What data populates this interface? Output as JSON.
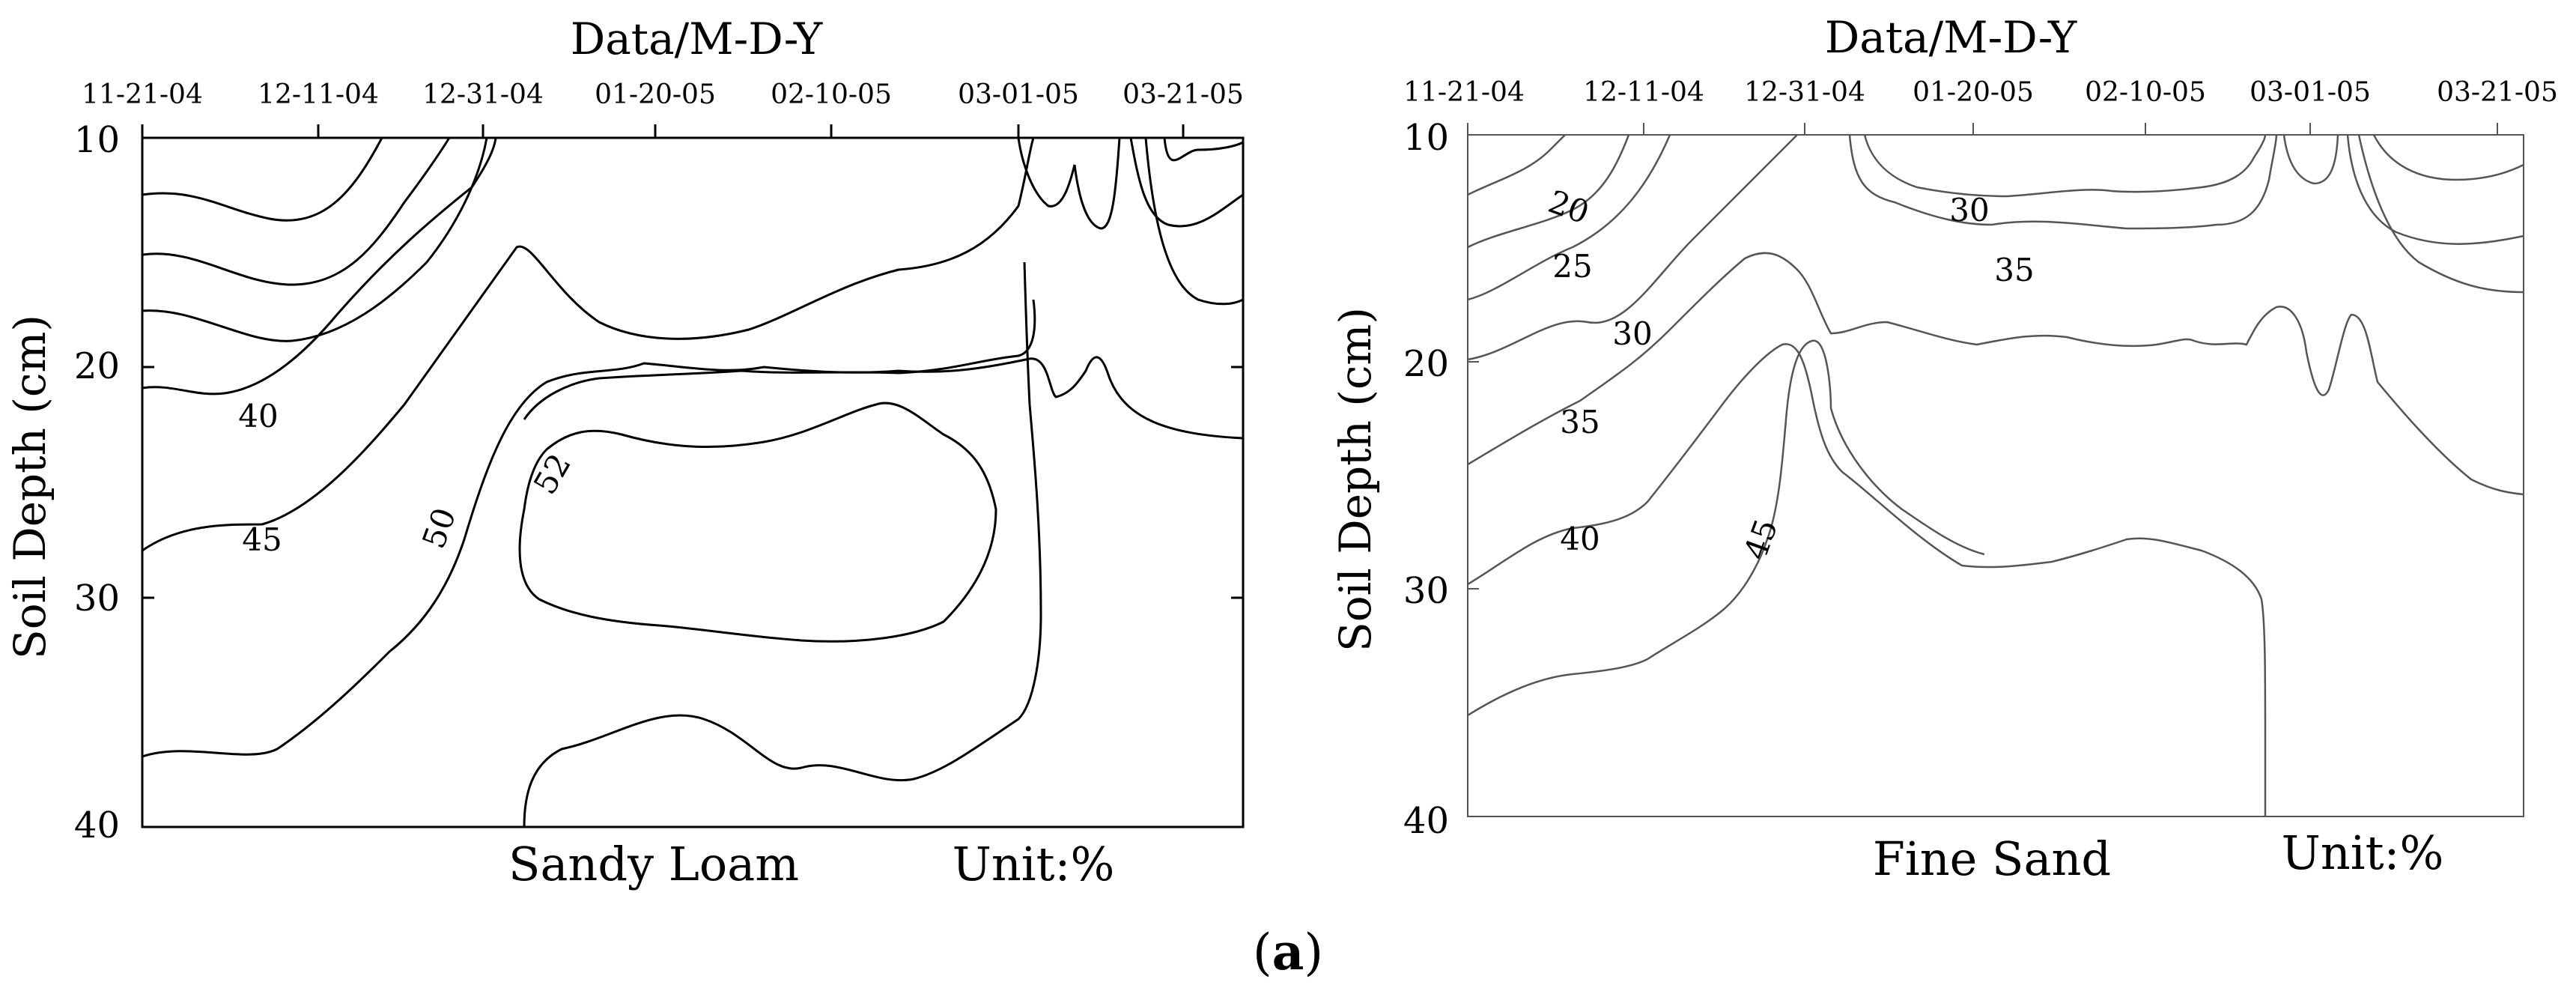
{
  "figure_caption": {
    "open": "(",
    "letter": "a",
    "close": ")"
  },
  "chart_data": [
    {
      "type": "contour",
      "xlabel": "Data/M-D-Y",
      "ylabel": "Soil Depth (cm)",
      "x_ticks": [
        "11-21-04",
        "12-11-04",
        "12-31-04",
        "01-20-05",
        "02-10-05",
        "03-01-05",
        "03-21-05"
      ],
      "y_ticks": [
        "10",
        "20",
        "30",
        "40"
      ],
      "ylim": [
        10,
        40
      ],
      "y_inverted": true,
      "soil": "Sandy Loam",
      "unit": "Unit:%",
      "contour_levels": [
        40,
        45,
        50,
        52
      ],
      "contour_labels": [
        {
          "value": "40",
          "date_index": 0.55,
          "depth": 22.2
        },
        {
          "value": "45",
          "date_index": 0.7,
          "depth": 27.0
        },
        {
          "value": "50",
          "date_index": 1.75,
          "depth": 27.2
        },
        {
          "value": "52",
          "date_index": 2.45,
          "depth": 24.8
        }
      ],
      "line_color": "#000000"
    },
    {
      "type": "contour",
      "xlabel": "Data/M-D-Y",
      "ylabel": "Soil Depth (cm)",
      "x_ticks": [
        "11-21-04",
        "12-11-04",
        "12-31-04",
        "01-20-05",
        "02-10-05",
        "03-01-05",
        "03-21-05"
      ],
      "y_ticks": [
        "10",
        "20",
        "30",
        "40"
      ],
      "ylim": [
        10,
        40
      ],
      "y_inverted": true,
      "soil": "Fine Sand",
      "unit": "Unit:%",
      "contour_levels": [
        20,
        25,
        30,
        35,
        40,
        45
      ],
      "contour_labels": [
        {
          "value": "20",
          "date_index": 0.65,
          "depth": 13.2
        },
        {
          "value": "25",
          "date_index": 0.55,
          "depth": 15.5
        },
        {
          "value": "30",
          "date_index": 3.1,
          "depth": 13.3
        },
        {
          "value": "35",
          "date_index": 3.35,
          "depth": 15.8
        },
        {
          "value": "30",
          "date_index": 0.95,
          "depth": 19.0
        },
        {
          "value": "35",
          "date_index": 0.65,
          "depth": 22.5
        },
        {
          "value": "40",
          "date_index": 0.65,
          "depth": 28.5
        },
        {
          "value": "45",
          "date_index": 1.8,
          "depth": 28.0
        }
      ],
      "line_color": "#555555"
    }
  ]
}
